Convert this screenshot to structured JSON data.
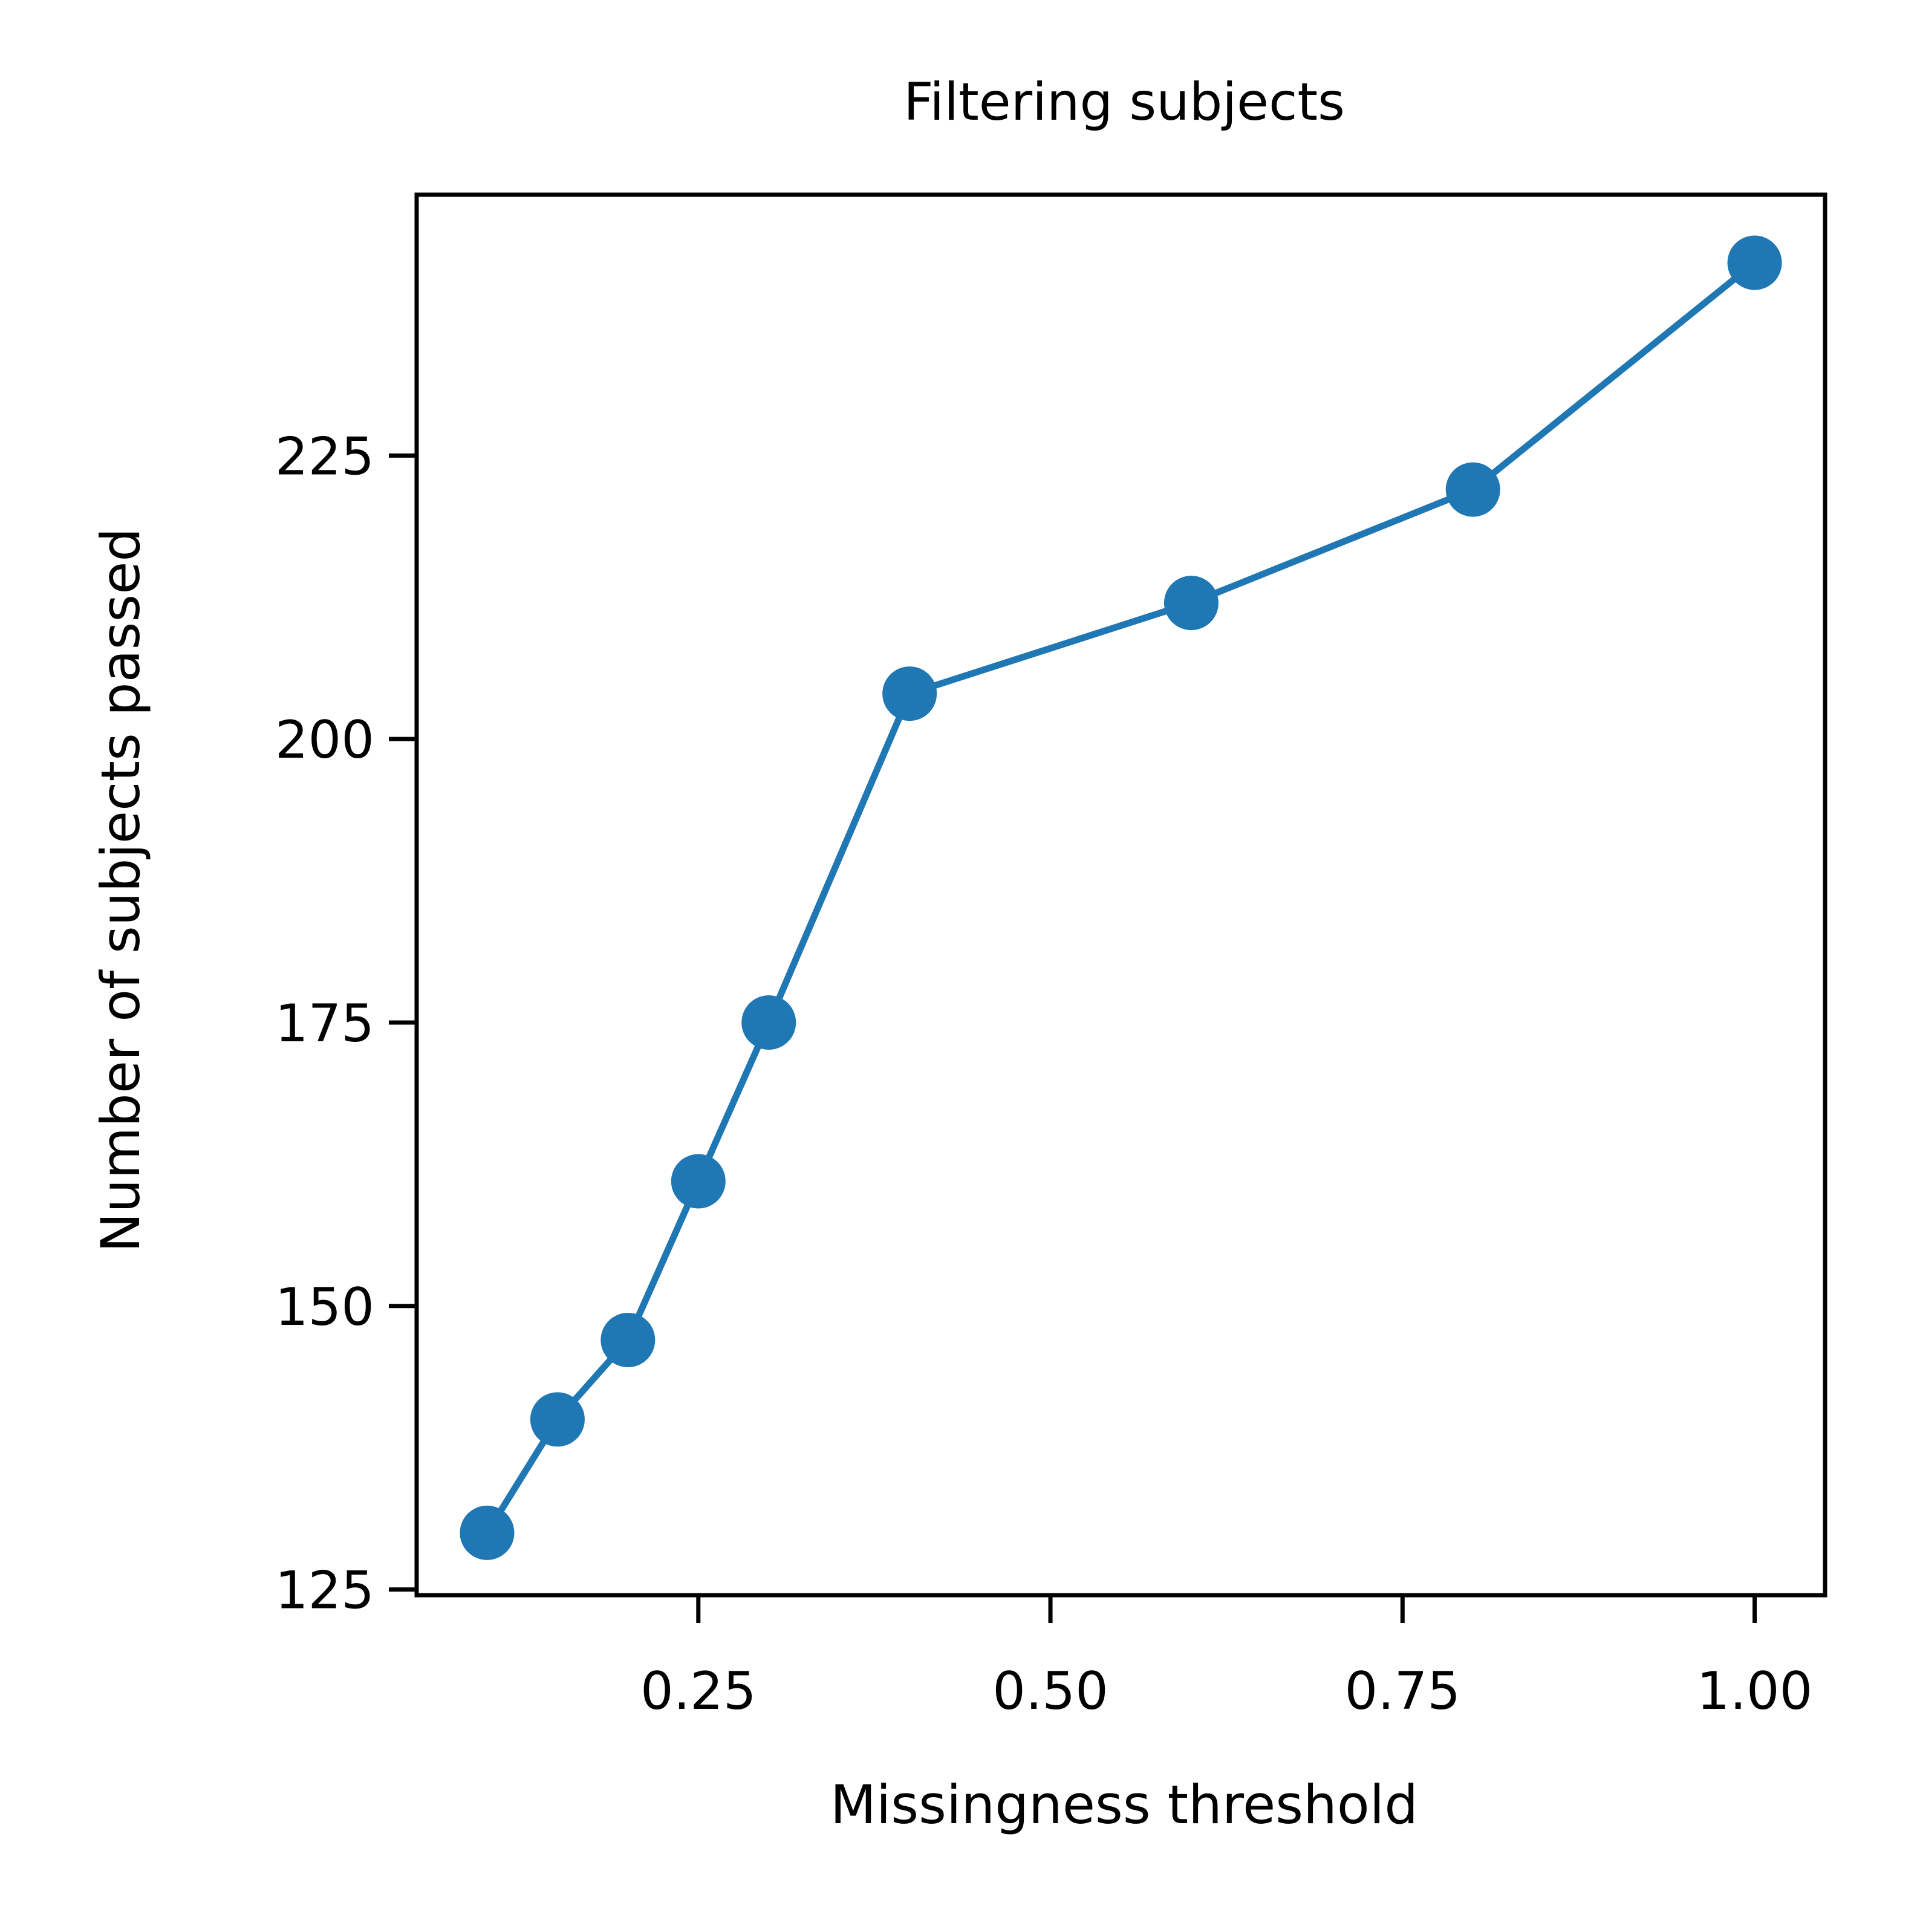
{
  "chart_data": {
    "type": "line",
    "title": "Filtering subjects",
    "xlabel": "Missingness threshold",
    "ylabel": "Number of subjects passed",
    "xlim": [
      0.05,
      1.05
    ],
    "ylim": [
      124.5,
      248
    ],
    "xticks": [
      0.25,
      0.5,
      0.75,
      1.0
    ],
    "xtick_labels": [
      "0.25",
      "0.50",
      "0.75",
      "1.00"
    ],
    "yticks": [
      125,
      150,
      175,
      200,
      225
    ],
    "ytick_labels": [
      "125",
      "150",
      "175",
      "200",
      "225"
    ],
    "grid": false,
    "legend": "none",
    "series": [
      {
        "color": "#1f77b4",
        "marker": "circle",
        "x": [
          0.1,
          0.15,
          0.2,
          0.25,
          0.3,
          0.4,
          0.6,
          0.8,
          1.0
        ],
        "y": [
          130,
          140,
          147,
          161,
          175,
          204,
          212,
          222,
          242
        ]
      }
    ]
  }
}
